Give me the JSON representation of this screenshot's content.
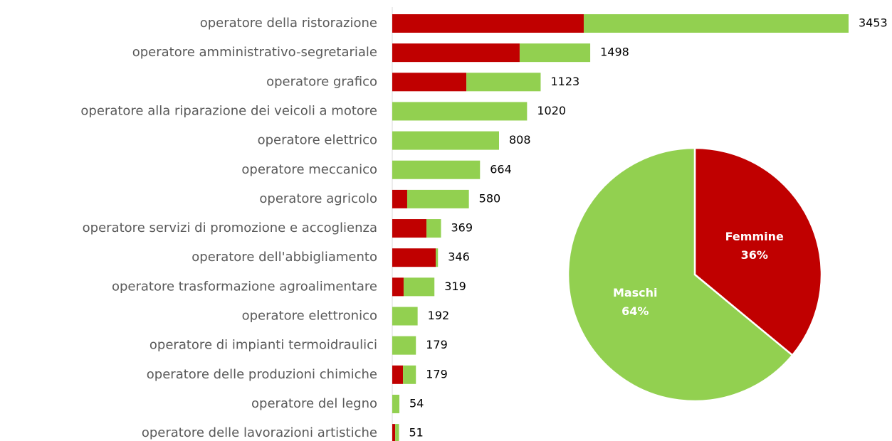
{
  "chart_data": [
    {
      "type": "stacked-barh",
      "categories": [
        "operatore della ristorazione",
        "operatore amministrativo-segretariale",
        "operatore grafico",
        "operatore alla riparazione dei veicoli a motore",
        "operatore elettrico",
        "operatore meccanico",
        "operatore agricolo",
        "operatore servizi di promozione e accoglienza",
        "operatore dell'abbigliamento",
        "operatore trasformazione agroalimentare",
        "operatore elettronico",
        "operatore di impianti termoidraulici",
        "operatore delle produzioni chimiche",
        "operatore del legno",
        "operatore delle lavorazioni artistiche"
      ],
      "series": [
        {
          "color": "#c00000",
          "values": [
            1449,
            964,
            561,
            0,
            0,
            0,
            113,
            259,
            329,
            86,
            0,
            0,
            81,
            0,
            22
          ]
        },
        {
          "color": "#92d050",
          "values": [
            2004,
            534,
            562,
            1020,
            808,
            664,
            467,
            110,
            17,
            233,
            192,
            179,
            98,
            54,
            29
          ]
        }
      ],
      "totals": [
        3453,
        1498,
        1123,
        1020,
        808,
        664,
        580,
        369,
        346,
        319,
        192,
        179,
        179,
        54,
        51
      ]
    },
    {
      "type": "pie",
      "labels": [
        "Femmine",
        "Maschi"
      ],
      "values": [
        36,
        64
      ],
      "value_labels": [
        "36%",
        "64%"
      ],
      "colors": [
        "#c00000",
        "#92d050"
      ]
    }
  ]
}
